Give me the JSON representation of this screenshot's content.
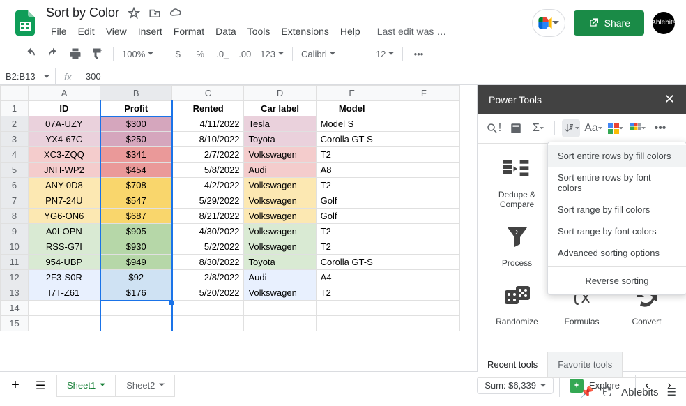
{
  "doc_title": "Sort by Color",
  "menu": [
    "File",
    "Edit",
    "View",
    "Insert",
    "Format",
    "Data",
    "Tools",
    "Extensions",
    "Help"
  ],
  "last_edit": "Last edit was …",
  "share_label": "Share",
  "avatar_label": "Ablebits",
  "toolbar": {
    "zoom": "100%",
    "font": "Calibri",
    "font_size": "12"
  },
  "name_box": "B2:B13",
  "formula_value": "300",
  "columns": [
    "A",
    "B",
    "C",
    "D",
    "E",
    "F"
  ],
  "headers": [
    "ID",
    "Profit",
    "Rented",
    "Car label",
    "Model"
  ],
  "rows": [
    {
      "n": 1,
      "color": "",
      "vals": [
        "",
        "",
        "",
        "",
        ""
      ]
    },
    {
      "n": 2,
      "color": "pink1",
      "vals": [
        "07A-UZY",
        "$300",
        "4/11/2022",
        "Tesla",
        "Model S"
      ]
    },
    {
      "n": 3,
      "color": "pink1",
      "vals": [
        "YX4-67C",
        "$250",
        "8/10/2022",
        "Toyota",
        "Corolla GT-S"
      ]
    },
    {
      "n": 4,
      "color": "pink2",
      "vals": [
        "XC3-ZQQ",
        "$341",
        "2/7/2022",
        "Volkswagen",
        "T2"
      ]
    },
    {
      "n": 5,
      "color": "pink2",
      "vals": [
        "JNH-WP2",
        "$454",
        "5/8/2022",
        "Audi",
        "A8"
      ]
    },
    {
      "n": 6,
      "color": "yellow",
      "vals": [
        "ANY-0D8",
        "$708",
        "4/2/2022",
        "Volkswagen",
        "T2"
      ]
    },
    {
      "n": 7,
      "color": "yellow",
      "vals": [
        "PN7-24U",
        "$547",
        "5/29/2022",
        "Volkswagen",
        "Golf"
      ]
    },
    {
      "n": 8,
      "color": "yellow",
      "vals": [
        "YG6-ON6",
        "$687",
        "8/21/2022",
        "Volkswagen",
        "Golf"
      ]
    },
    {
      "n": 9,
      "color": "green",
      "vals": [
        "A0I-OPN",
        "$905",
        "4/30/2022",
        "Volkswagen",
        "T2"
      ]
    },
    {
      "n": 10,
      "color": "green",
      "vals": [
        "RSS-G7I",
        "$930",
        "5/2/2022",
        "Volkswagen",
        "T2"
      ]
    },
    {
      "n": 11,
      "color": "green",
      "vals": [
        "954-UBP",
        "$949",
        "8/30/2022",
        "Toyota",
        "Corolla GT-S"
      ]
    },
    {
      "n": 12,
      "color": "blue",
      "vals": [
        "2F3-S0R",
        "$92",
        "2/8/2022",
        "Audi",
        "A4"
      ]
    },
    {
      "n": 13,
      "color": "blue",
      "vals": [
        "I7T-Z61",
        "$176",
        "5/20/2022",
        "Volkswagen",
        "T2"
      ]
    },
    {
      "n": 14,
      "color": "",
      "vals": [
        "",
        "",
        "",
        "",
        ""
      ]
    },
    {
      "n": 15,
      "color": "",
      "vals": [
        "",
        "",
        "",
        "",
        ""
      ]
    }
  ],
  "cell_colors": {
    "pink1": {
      "id": "#ead1dc",
      "profit": "#d5a6bd"
    },
    "pink2": {
      "id": "#f4cccc",
      "profit": "#ea9999"
    },
    "yellow": {
      "id": "#fce8b2",
      "profit": "#f9d66c"
    },
    "green": {
      "id": "#d9ead3",
      "profit": "#b6d7a8"
    },
    "blue": {
      "id": "#e8f0fe",
      "profit": "#cfe2f3"
    }
  },
  "selection": {
    "col": "B",
    "row_start": 2,
    "row_end": 13
  },
  "panel": {
    "title": "Power Tools",
    "tools": [
      "Dedupe & Compare",
      "",
      "",
      "Process",
      "",
      "",
      "Randomize",
      "Formulas",
      "Convert"
    ],
    "tabs": {
      "recent": "Recent tools",
      "favorite": "Favorite tools"
    },
    "brand": "Ablebits"
  },
  "dropdown": {
    "items": [
      "Sort entire rows by fill colors",
      "Sort entire rows by font colors",
      "Sort range by fill colors",
      "Sort range by font colors",
      "Advanced sorting options"
    ],
    "last": "Reverse sorting",
    "highlighted": 0
  },
  "sheets": {
    "s1": "Sheet1",
    "s2": "Sheet2"
  },
  "sum": "Sum: $6,339",
  "explore": "Explore"
}
